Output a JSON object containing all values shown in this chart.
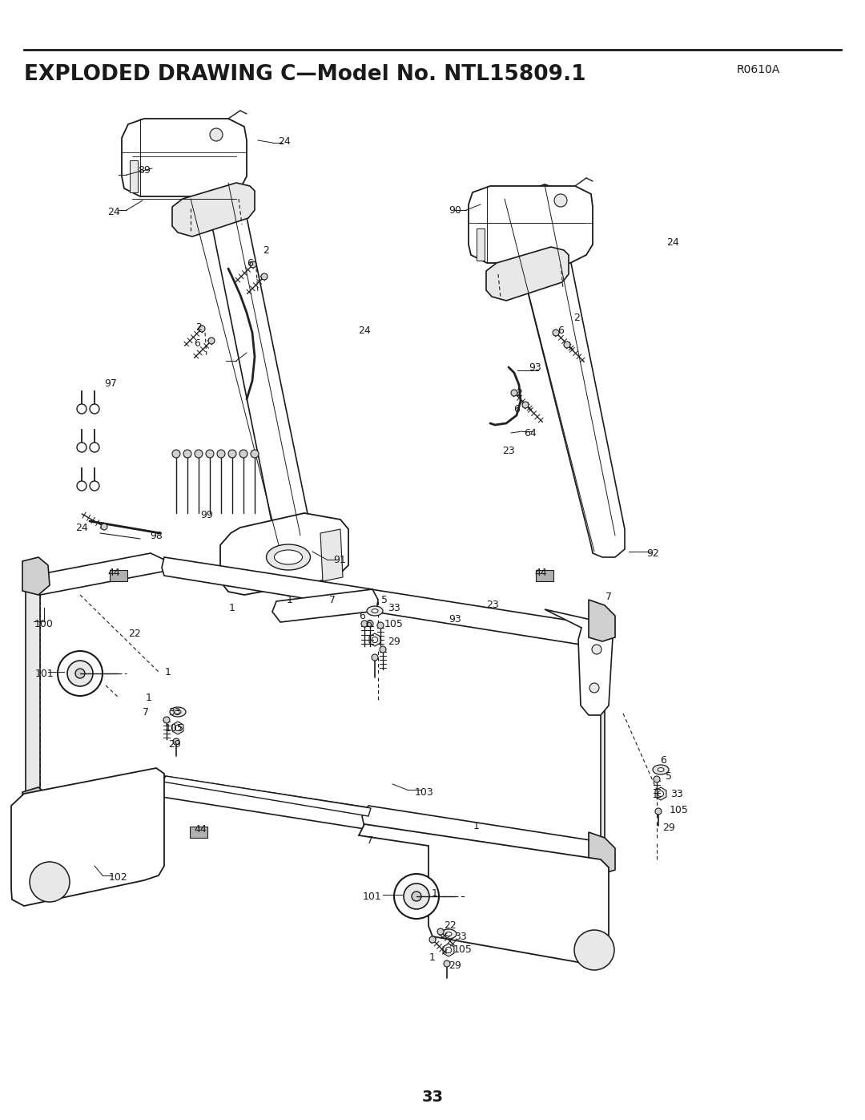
{
  "title": "EXPLODED DRAWING C—Model No. NTL15809.1",
  "revision": "R0610A",
  "page_number": "33",
  "bg": "#ffffff",
  "lc": "#1a1a1a"
}
